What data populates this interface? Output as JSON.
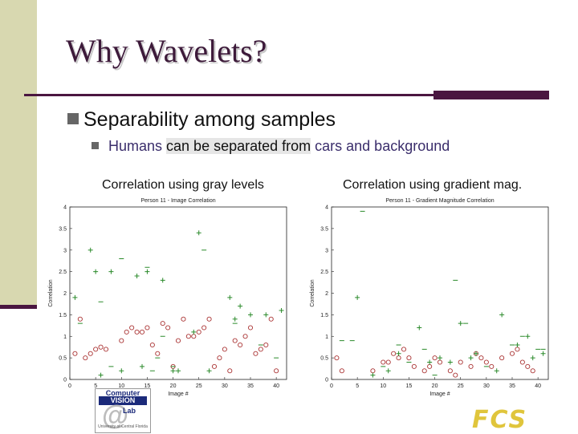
{
  "slide": {
    "title": "Why Wavelets?",
    "bullet": "Separability among samples",
    "sub_bullet": {
      "part1": "Humans ",
      "highlight": "can be separated from",
      "part2": " cars and background"
    },
    "caption_left": "Correlation using gray levels",
    "caption_right": "Correlation using gradient mag."
  },
  "logos": {
    "left": {
      "line1": "Computer",
      "line2": "VISION",
      "line3": "Lab",
      "at": "@",
      "line4": "University of Central Florida"
    },
    "right": {
      "text": "FCS"
    }
  },
  "colors": {
    "accent": "#4a1640",
    "sidebar": "#d8d8b0",
    "marker": "#a33",
    "title": "#3d1a3a"
  },
  "chart_data": [
    {
      "type": "scatter",
      "title": "Person 11 - Image Correlation",
      "xlabel": "Image #",
      "ylabel": "Correlation",
      "xlim": [
        0,
        42
      ],
      "ylim": [
        0,
        4
      ],
      "xticks": [
        0,
        5,
        10,
        15,
        20,
        25,
        30,
        35,
        40
      ],
      "yticks": [
        0,
        0.5,
        1,
        1.5,
        2,
        2.5,
        3,
        3.5,
        4
      ],
      "series": [
        {
          "marker": "circle",
          "points": [
            [
              1,
              0.6
            ],
            [
              2,
              1.4
            ],
            [
              3,
              0.5
            ],
            [
              4,
              0.6
            ],
            [
              5,
              0.7
            ],
            [
              6,
              0.75
            ],
            [
              7,
              0.7
            ],
            [
              10,
              0.9
            ],
            [
              11,
              1.1
            ],
            [
              12,
              1.2
            ],
            [
              13,
              1.1
            ],
            [
              14,
              1.1
            ],
            [
              15,
              1.2
            ],
            [
              16,
              0.8
            ],
            [
              17,
              0.6
            ],
            [
              18,
              1.3
            ],
            [
              19,
              1.2
            ],
            [
              20,
              0.3
            ],
            [
              21,
              0.9
            ],
            [
              22,
              1.4
            ],
            [
              23,
              1.0
            ],
            [
              24,
              1.0
            ],
            [
              25,
              1.1
            ],
            [
              26,
              1.2
            ],
            [
              27,
              1.4
            ],
            [
              28,
              0.3
            ],
            [
              29,
              0.5
            ],
            [
              30,
              0.7
            ],
            [
              31,
              0.2
            ],
            [
              32,
              0.9
            ],
            [
              33,
              0.8
            ],
            [
              34,
              1.0
            ],
            [
              35,
              1.2
            ],
            [
              36,
              0.6
            ],
            [
              37,
              0.7
            ],
            [
              38,
              0.8
            ],
            [
              39,
              1.4
            ],
            [
              40,
              0.2
            ]
          ]
        },
        {
          "marker": "plus",
          "points": [
            [
              1,
              1.9
            ],
            [
              4,
              3.0
            ],
            [
              5,
              2.5
            ],
            [
              6,
              0.1
            ],
            [
              8,
              2.5
            ],
            [
              10,
              0.2
            ],
            [
              13,
              2.4
            ],
            [
              14,
              0.3
            ],
            [
              15,
              2.5
            ],
            [
              18,
              2.3
            ],
            [
              20,
              0.2
            ],
            [
              21,
              0.2
            ],
            [
              24,
              1.1
            ],
            [
              25,
              3.4
            ],
            [
              27,
              0.2
            ],
            [
              31,
              1.9
            ],
            [
              32,
              1.4
            ],
            [
              33,
              1.7
            ],
            [
              35,
              1.5
            ],
            [
              38,
              1.5
            ],
            [
              41,
              1.6
            ]
          ]
        },
        {
          "marker": "dash",
          "points": [
            [
              2,
              1.3
            ],
            [
              6,
              1.8
            ],
            [
              8,
              0.3
            ],
            [
              10,
              2.8
            ],
            [
              15,
              2.6
            ],
            [
              16,
              0.2
            ],
            [
              17,
              0.5
            ],
            [
              18,
              1.0
            ],
            [
              20,
              0.3
            ],
            [
              26,
              3.0
            ],
            [
              32,
              1.3
            ],
            [
              37,
              0.8
            ],
            [
              40,
              0.5
            ]
          ]
        }
      ]
    },
    {
      "type": "scatter",
      "title": "Person 11 - Gradient Magnitude Correlation",
      "xlabel": "Image #",
      "ylabel": "Correlation",
      "xlim": [
        0,
        42
      ],
      "ylim": [
        0,
        4
      ],
      "xticks": [
        0,
        5,
        10,
        15,
        20,
        25,
        30,
        35,
        40
      ],
      "yticks": [
        0,
        0.5,
        1,
        1.5,
        2,
        2.5,
        3,
        3.5,
        4
      ],
      "series": [
        {
          "marker": "circle",
          "points": [
            [
              1,
              0.5
            ],
            [
              2,
              0.2
            ],
            [
              8,
              0.2
            ],
            [
              10,
              0.4
            ],
            [
              11,
              0.4
            ],
            [
              12,
              0.6
            ],
            [
              13,
              0.5
            ],
            [
              14,
              0.7
            ],
            [
              15,
              0.5
            ],
            [
              16,
              0.3
            ],
            [
              18,
              0.2
            ],
            [
              19,
              0.3
            ],
            [
              20,
              0.5
            ],
            [
              21,
              0.4
            ],
            [
              23,
              0.2
            ],
            [
              24,
              0.1
            ],
            [
              25,
              0.4
            ],
            [
              27,
              0.3
            ],
            [
              28,
              0.6
            ],
            [
              29,
              0.5
            ],
            [
              30,
              0.4
            ],
            [
              31,
              0.3
            ],
            [
              33,
              0.5
            ],
            [
              35,
              0.6
            ],
            [
              36,
              0.7
            ],
            [
              37,
              0.4
            ],
            [
              38,
              0.3
            ],
            [
              39,
              0.2
            ]
          ]
        },
        {
          "marker": "plus",
          "points": [
            [
              5,
              1.9
            ],
            [
              8,
              0.1
            ],
            [
              11,
              0.2
            ],
            [
              13,
              0.6
            ],
            [
              17,
              1.2
            ],
            [
              19,
              0.4
            ],
            [
              21,
              0.5
            ],
            [
              23,
              0.4
            ],
            [
              25,
              1.3
            ],
            [
              27,
              0.5
            ],
            [
              28,
              0.6
            ],
            [
              32,
              0.2
            ],
            [
              33,
              1.5
            ],
            [
              36,
              0.8
            ],
            [
              38,
              1.0
            ],
            [
              39,
              0.5
            ],
            [
              41,
              0.6
            ]
          ]
        },
        {
          "marker": "dash",
          "points": [
            [
              2,
              0.9
            ],
            [
              4,
              0.9
            ],
            [
              6,
              3.9
            ],
            [
              10,
              0.3
            ],
            [
              13,
              0.8
            ],
            [
              15,
              0.4
            ],
            [
              18,
              0.7
            ],
            [
              20,
              0.1
            ],
            [
              24,
              2.3
            ],
            [
              26,
              1.3
            ],
            [
              30,
              0.3
            ],
            [
              35,
              0.8
            ],
            [
              37,
              1.0
            ],
            [
              40,
              0.7
            ],
            [
              41,
              0.7
            ]
          ]
        }
      ]
    }
  ]
}
